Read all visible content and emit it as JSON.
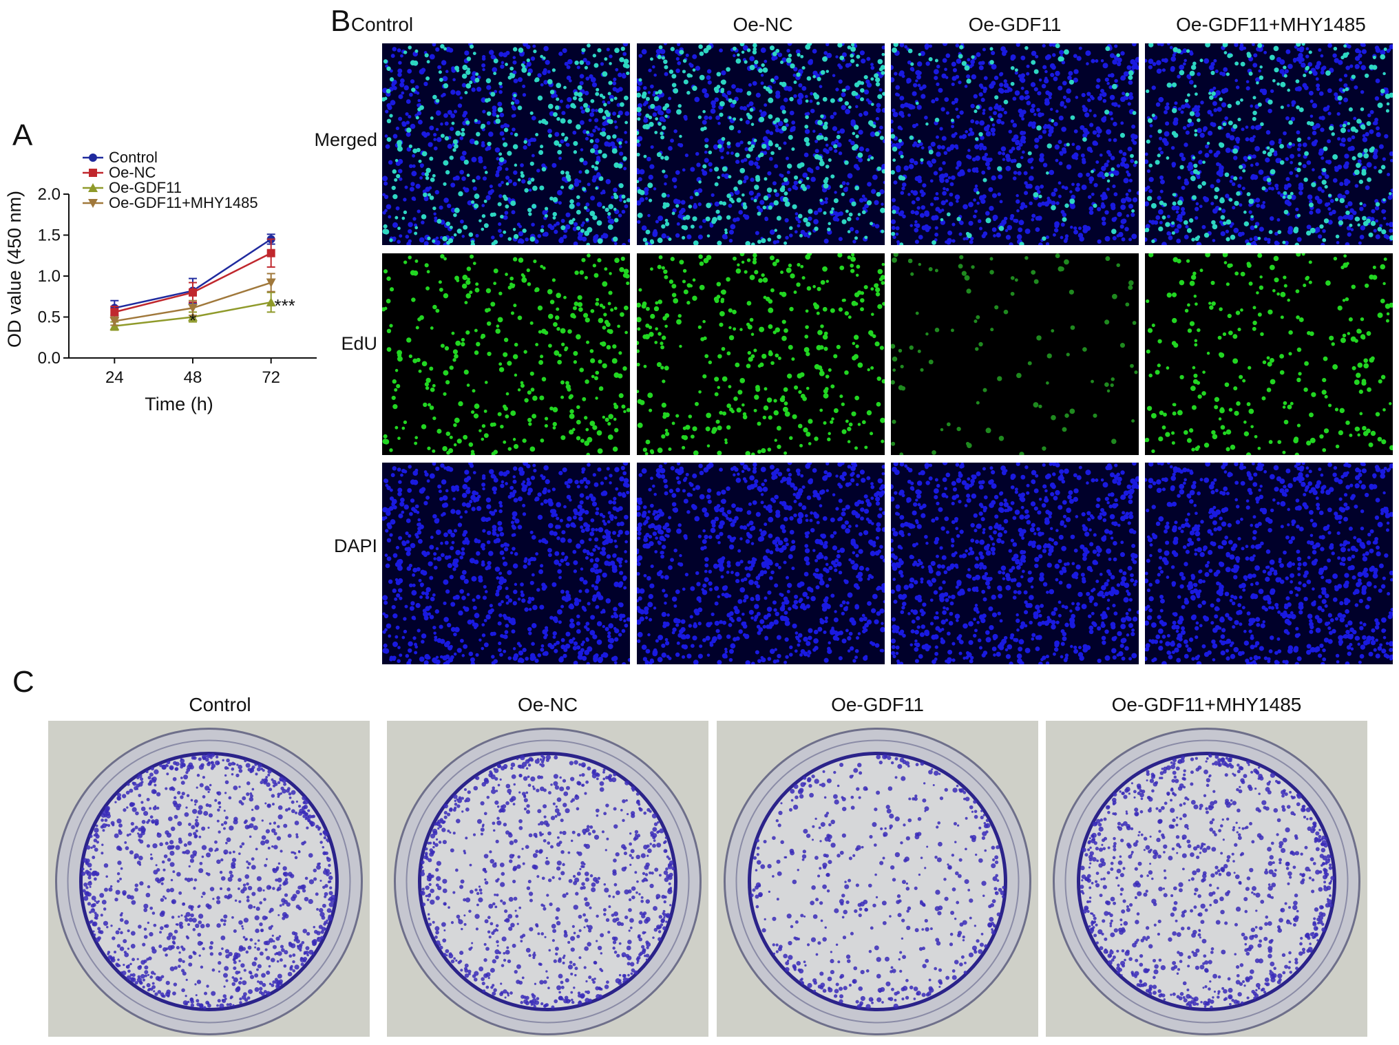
{
  "panels": {
    "a": {
      "letter": "A"
    },
    "b": {
      "letter": "B"
    },
    "c": {
      "letter": "C"
    }
  },
  "chart_data": {
    "type": "line",
    "xlabel": "Time (h)",
    "ylabel": "OD value (450 nm)",
    "x": [
      24,
      48,
      72
    ],
    "xlim": [
      10,
      86
    ],
    "ylim": [
      0,
      2.0
    ],
    "yticks": [
      0.0,
      0.5,
      1.0,
      1.5,
      2.0
    ],
    "ytick_labels": [
      "0.0",
      "0.5",
      "1.0",
      "1.5",
      "2.0"
    ],
    "xtick_labels": [
      "24",
      "48",
      "72"
    ],
    "grid": false,
    "legend": "top-left",
    "series": [
      {
        "name": "Control",
        "values": [
          0.61,
          0.82,
          1.45
        ],
        "err": [
          0.09,
          0.15,
          0.06
        ],
        "color": "#1f2a9e",
        "marker": "circle"
      },
      {
        "name": "Oe-NC",
        "values": [
          0.56,
          0.8,
          1.28
        ],
        "err": [
          0.07,
          0.12,
          0.17
        ],
        "color": "#c0272d",
        "marker": "square"
      },
      {
        "name": "Oe-GDF11",
        "values": [
          0.39,
          0.5,
          0.68
        ],
        "err": [
          0.05,
          0.06,
          0.12
        ],
        "color": "#8f9a2a",
        "marker": "triangle-up"
      },
      {
        "name": "Oe-GDF11+MHY1485",
        "values": [
          0.45,
          0.61,
          0.92
        ],
        "err": [
          0.05,
          0.09,
          0.11
        ],
        "color": "#a0783b",
        "marker": "triangle-down"
      }
    ],
    "annotations": [
      {
        "text": "*",
        "x": 48,
        "y": 0.5
      },
      {
        "text": "***",
        "x": 72,
        "y": 0.68
      }
    ]
  },
  "edu_panel": {
    "columns": [
      "Control",
      "Oe-NC",
      "Oe-GDF11",
      "Oe-GDF11+MHY1485"
    ],
    "rows": [
      "Merged",
      "EdU",
      "DAPI"
    ],
    "edu_positive_fraction": [
      0.3,
      0.32,
      0.08,
      0.22
    ]
  },
  "colony_panel": {
    "columns": [
      "Control",
      "Oe-NC",
      "Oe-GDF11",
      "Oe-GDF11+MHY1485"
    ],
    "colony_density": [
      1.0,
      0.8,
      0.45,
      0.85
    ]
  }
}
